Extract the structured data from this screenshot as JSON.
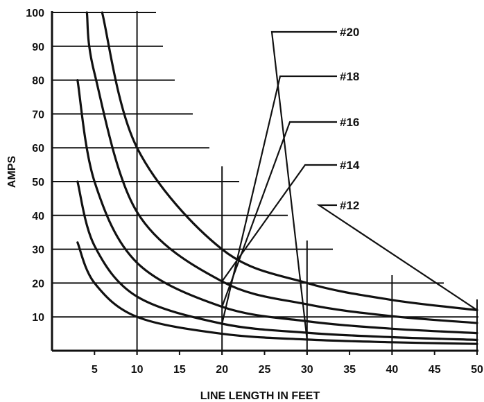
{
  "chart_data": {
    "type": "line",
    "xlabel": "LINE LENGTH IN FEET",
    "ylabel": "AMPS",
    "x_ticks": [
      "5",
      "10",
      "15",
      "20",
      "25",
      "30",
      "35",
      "40",
      "45",
      "50"
    ],
    "y_ticks": [
      "10",
      "20",
      "30",
      "40",
      "50",
      "60",
      "70",
      "80",
      "90",
      "100"
    ],
    "xlim": [
      0,
      50
    ],
    "ylim": [
      0,
      100
    ],
    "series": [
      {
        "name": "#20",
        "x": [
          3,
          5,
          10,
          20,
          30,
          40,
          50
        ],
        "y": [
          32,
          20,
          10,
          5,
          3.3,
          2.5,
          2
        ]
      },
      {
        "name": "#18",
        "x": [
          3,
          5,
          10,
          20,
          30,
          40,
          50
        ],
        "y": [
          50,
          31,
          16,
          8,
          5.3,
          4,
          3.2
        ]
      },
      {
        "name": "#16",
        "x": [
          3,
          5,
          10,
          20,
          30,
          40,
          50
        ],
        "y": [
          80,
          50,
          26,
          13,
          8.7,
          6.5,
          5.2
        ]
      },
      {
        "name": "#14",
        "x": [
          4.1,
          5,
          10,
          20,
          30,
          40,
          50
        ],
        "y": [
          100,
          82,
          41,
          20.5,
          13.7,
          10.2,
          8.2
        ]
      },
      {
        "name": "#12",
        "x": [
          5.9,
          10,
          20,
          30,
          40,
          50
        ],
        "y": [
          100,
          60,
          30,
          20,
          15,
          12
        ]
      }
    ]
  }
}
